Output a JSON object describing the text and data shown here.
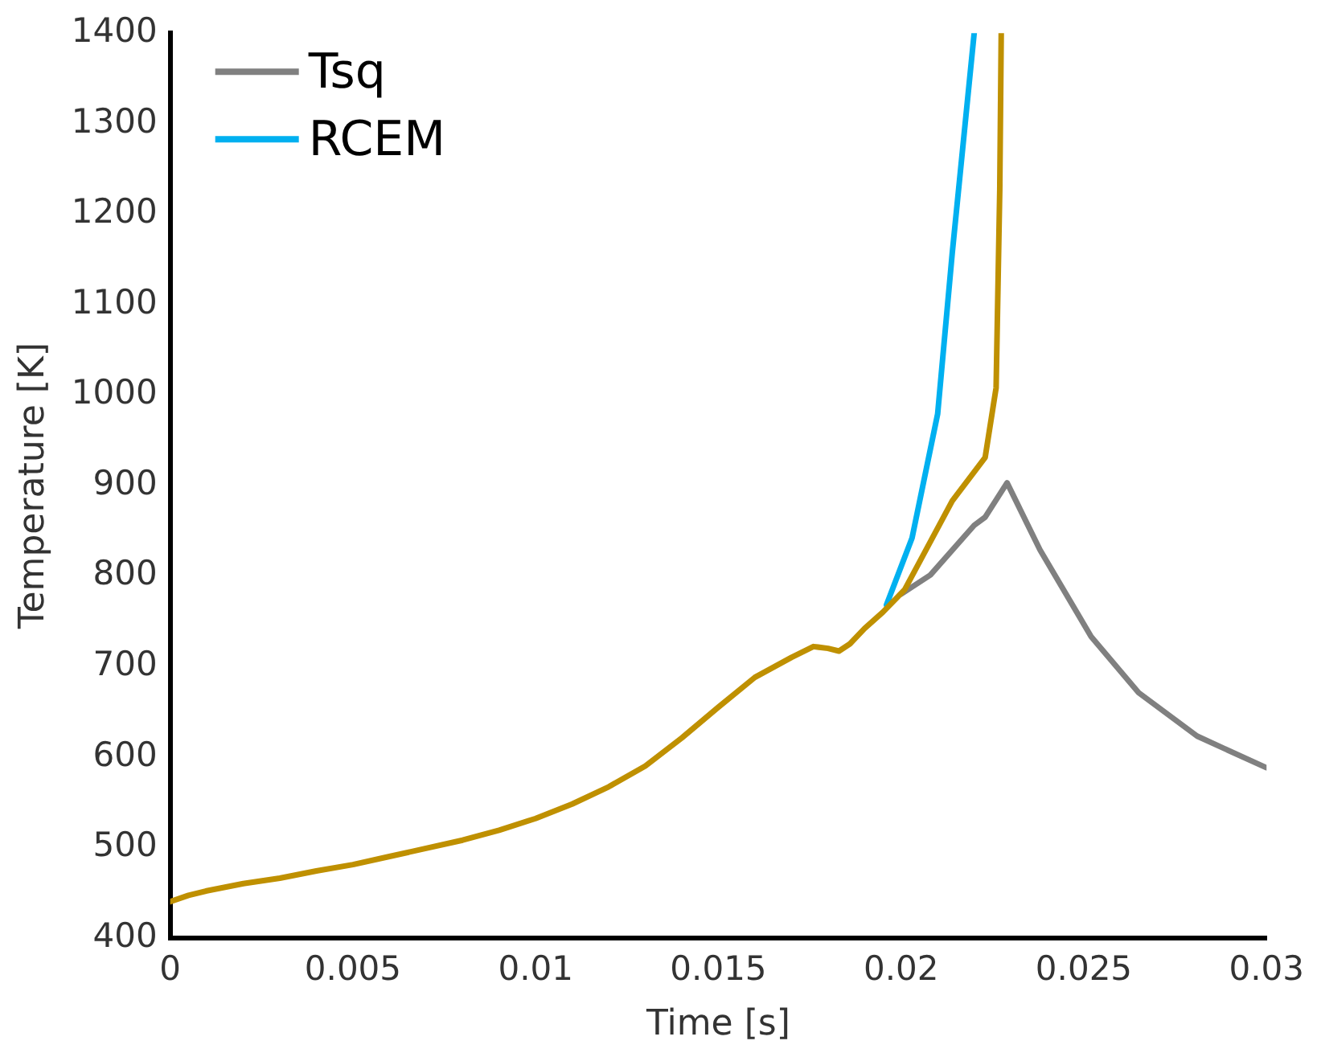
{
  "chart_data": {
    "type": "line",
    "xlabel": "Time [s]",
    "ylabel": "Temperature [K]",
    "xlim": [
      0,
      0.03
    ],
    "xticks": [
      0,
      0.005,
      0.01,
      0.015,
      0.02,
      0.025,
      0.03
    ],
    "ylim": [
      400,
      1400
    ],
    "yticks": [
      400,
      500,
      600,
      700,
      800,
      900,
      1000,
      1100,
      1200,
      1300,
      1400
    ],
    "grid": false,
    "legend": "top left",
    "marker": "none",
    "line_style": "solid",
    "series": [
      {
        "name": "Tsq",
        "color": "#808080",
        "x": [
          0.02,
          0.0208,
          0.022,
          0.0223,
          0.0229,
          0.0238,
          0.0252,
          0.0265,
          0.0281,
          0.03
        ],
        "values": [
          780,
          801,
          856,
          865,
          903,
          829,
          733,
          671,
          623,
          588
        ]
      },
      {
        "name": "RCEM",
        "color": "#00b0f0",
        "x": [
          0.0196,
          0.0203,
          0.021,
          0.0214,
          0.022
        ],
        "values": [
          768,
          842,
          979,
          1157,
          1400
        ]
      },
      {
        "color": "#bf9000",
        "x": [
          0,
          0.0005,
          0.001,
          0.002,
          0.003,
          0.004,
          0.005,
          0.006,
          0.007,
          0.008,
          0.009,
          0.01,
          0.011,
          0.012,
          0.013,
          0.014,
          0.015,
          0.016,
          0.017,
          0.0176,
          0.018,
          0.0183,
          0.0186,
          0.019,
          0.0195,
          0.0201,
          0.0214,
          0.0223,
          0.0226,
          0.0227,
          0.02274
        ],
        "values": [
          440,
          447,
          452,
          460,
          466,
          474,
          481,
          490,
          499,
          508,
          519,
          532,
          548,
          567,
          590,
          621,
          655,
          688,
          710,
          722,
          720,
          717,
          725,
          742,
          760,
          785,
          883,
          931,
          1008,
          1227,
          1400
        ]
      }
    ]
  }
}
